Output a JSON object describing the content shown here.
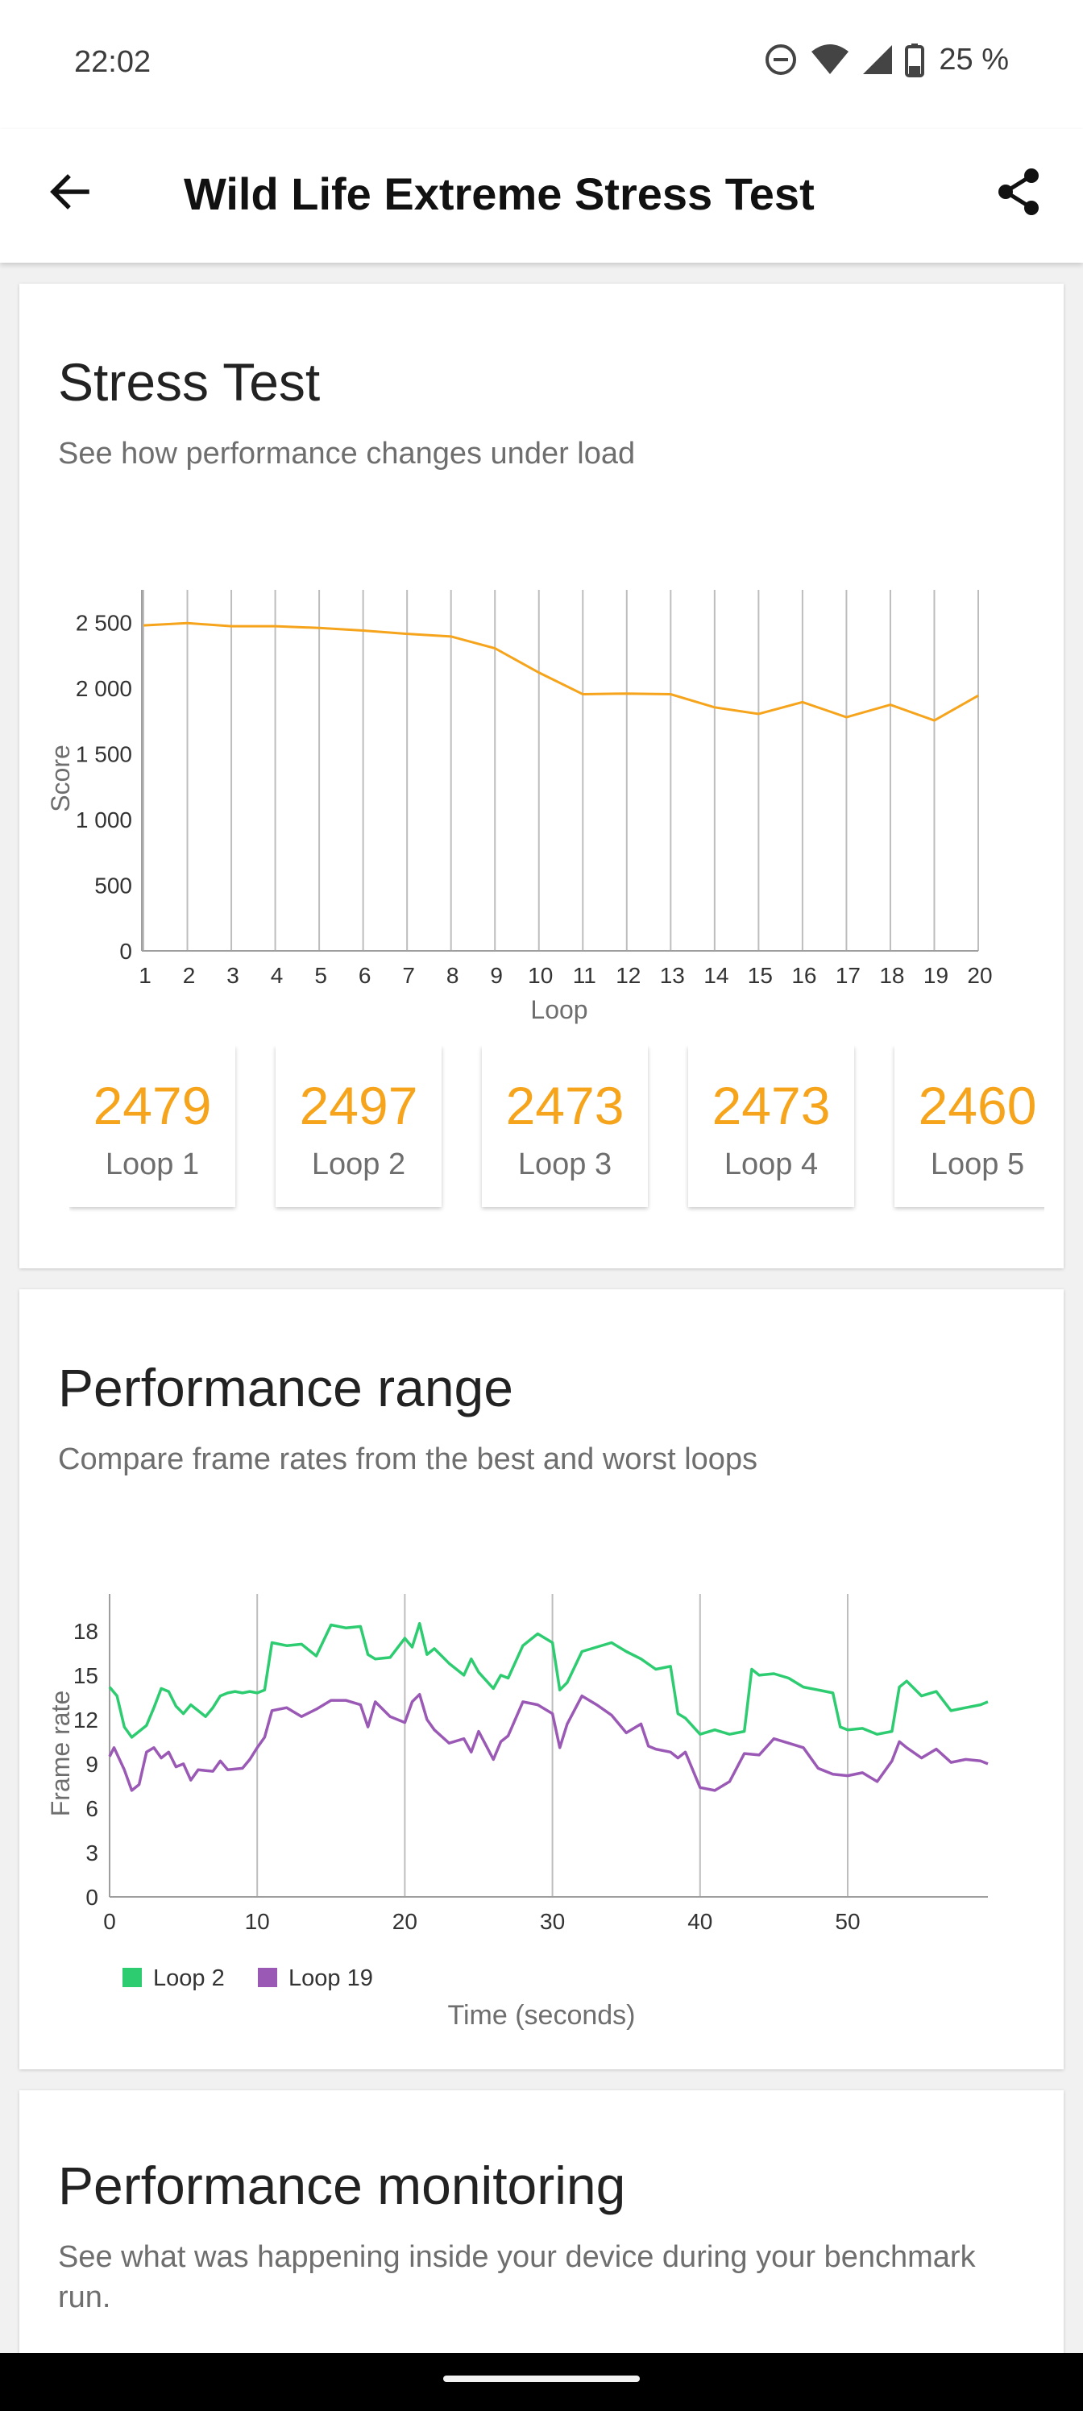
{
  "status": {
    "time": "22:02",
    "battery": "25 %"
  },
  "app_bar": {
    "title": "Wild Life Extreme Stress Test",
    "back_icon": "arrow-left-icon",
    "share_icon": "share-icon"
  },
  "stress": {
    "title": "Stress Test",
    "subtitle": "See how performance changes under load",
    "tiles": [
      {
        "value": "2479",
        "label": "Loop 1"
      },
      {
        "value": "2497",
        "label": "Loop 2"
      },
      {
        "value": "2473",
        "label": "Loop 3"
      },
      {
        "value": "2473",
        "label": "Loop 4"
      },
      {
        "value": "2460",
        "label": "Loop 5"
      }
    ]
  },
  "range": {
    "title": "Performance range",
    "subtitle": "Compare frame rates from the best and worst loops"
  },
  "monitor": {
    "title": "Performance monitoring",
    "subtitle": "See what was happening inside your device during your benchmark run."
  },
  "colors": {
    "accent": "#f5a41c",
    "loop_best": "#2ecc71",
    "loop_worst": "#9b59b6"
  },
  "chart_data": [
    {
      "type": "line",
      "xlabel": "Loop",
      "ylabel": "Score",
      "x": [
        1,
        2,
        3,
        4,
        5,
        6,
        7,
        8,
        9,
        10,
        11,
        12,
        13,
        14,
        15,
        16,
        17,
        18,
        19,
        20
      ],
      "y_ticks": [
        0,
        500,
        1000,
        1500,
        2000,
        2500
      ],
      "y_tick_labels": [
        "0",
        "500",
        "1 000",
        "1 500",
        "2 000",
        "2 500"
      ],
      "ylim": [
        0,
        2750
      ],
      "grid": "vertical",
      "series": [
        {
          "color": "#f5a41c",
          "values": [
            2479,
            2497,
            2473,
            2473,
            2460,
            2440,
            2415,
            2395,
            2305,
            2120,
            1955,
            1960,
            1955,
            1855,
            1805,
            1895,
            1780,
            1875,
            1755,
            1945
          ]
        }
      ]
    },
    {
      "type": "line",
      "xlabel": "Time (seconds)",
      "ylabel": "Frame rate",
      "x_ticks": [
        0,
        10,
        20,
        30,
        40,
        50
      ],
      "xlim": [
        0,
        59.5
      ],
      "y_ticks": [
        0,
        3,
        6,
        9,
        12,
        15,
        18
      ],
      "ylim": [
        0,
        20.5
      ],
      "grid": "vertical",
      "legend": "bottom-left",
      "series": [
        {
          "name": "Loop 2",
          "color": "#2ecc71",
          "points": [
            [
              0,
              14.2
            ],
            [
              0.5,
              13.6
            ],
            [
              1,
              11.5
            ],
            [
              1.5,
              10.8
            ],
            [
              2,
              11.2
            ],
            [
              2.5,
              11.6
            ],
            [
              3,
              12.8
            ],
            [
              3.5,
              14.1
            ],
            [
              4,
              13.9
            ],
            [
              4.5,
              12.9
            ],
            [
              5,
              12.4
            ],
            [
              5.5,
              13.0
            ],
            [
              6,
              12.6
            ],
            [
              6.5,
              12.2
            ],
            [
              7,
              12.8
            ],
            [
              7.5,
              13.6
            ],
            [
              8,
              13.8
            ],
            [
              8.5,
              13.9
            ],
            [
              9,
              13.8
            ],
            [
              9.5,
              13.9
            ],
            [
              10,
              13.8
            ],
            [
              10.5,
              14.0
            ],
            [
              11,
              17.2
            ],
            [
              12,
              17.0
            ],
            [
              13,
              17.1
            ],
            [
              14,
              16.3
            ],
            [
              15,
              18.4
            ],
            [
              16,
              18.2
            ],
            [
              17,
              18.3
            ],
            [
              17.5,
              16.4
            ],
            [
              18,
              16.1
            ],
            [
              19,
              16.2
            ],
            [
              20,
              17.5
            ],
            [
              20.5,
              16.9
            ],
            [
              21,
              18.5
            ],
            [
              21.5,
              16.4
            ],
            [
              22,
              16.8
            ],
            [
              23,
              15.8
            ],
            [
              24,
              15.0
            ],
            [
              24.5,
              16.1
            ],
            [
              25,
              15.2
            ],
            [
              26,
              14.1
            ],
            [
              26.5,
              15.0
            ],
            [
              27,
              14.8
            ],
            [
              28,
              17.0
            ],
            [
              29,
              17.8
            ],
            [
              30,
              17.2
            ],
            [
              30.5,
              14.0
            ],
            [
              31,
              14.5
            ],
            [
              32,
              16.6
            ],
            [
              33,
              16.9
            ],
            [
              34,
              17.2
            ],
            [
              35,
              16.6
            ],
            [
              36,
              16.1
            ],
            [
              37,
              15.4
            ],
            [
              38,
              15.6
            ],
            [
              38.5,
              12.4
            ],
            [
              39,
              12.1
            ],
            [
              40,
              11.0
            ],
            [
              41,
              11.3
            ],
            [
              42,
              11.0
            ],
            [
              43,
              11.2
            ],
            [
              43.5,
              15.4
            ],
            [
              44,
              15.0
            ],
            [
              45,
              15.1
            ],
            [
              46,
              14.8
            ],
            [
              47,
              14.2
            ],
            [
              48,
              14.0
            ],
            [
              49,
              13.8
            ],
            [
              49.5,
              11.5
            ],
            [
              50,
              11.3
            ],
            [
              51,
              11.4
            ],
            [
              52,
              11.0
            ],
            [
              53,
              11.2
            ],
            [
              53.5,
              14.2
            ],
            [
              54,
              14.6
            ],
            [
              55,
              13.6
            ],
            [
              56,
              13.9
            ],
            [
              57,
              12.6
            ],
            [
              58,
              12.8
            ],
            [
              59,
              13.0
            ],
            [
              59.5,
              13.2
            ]
          ]
        },
        {
          "name": "Loop 19",
          "color": "#9b59b6",
          "points": [
            [
              0,
              9.5
            ],
            [
              0.3,
              10.1
            ],
            [
              1,
              8.6
            ],
            [
              1.5,
              7.2
            ],
            [
              2,
              7.6
            ],
            [
              2.5,
              9.8
            ],
            [
              3,
              10.1
            ],
            [
              3.5,
              9.4
            ],
            [
              4,
              9.8
            ],
            [
              4.5,
              8.8
            ],
            [
              5,
              9.0
            ],
            [
              5.5,
              7.9
            ],
            [
              6,
              8.6
            ],
            [
              7,
              8.5
            ],
            [
              7.5,
              9.2
            ],
            [
              8,
              8.6
            ],
            [
              9,
              8.7
            ],
            [
              9.5,
              9.3
            ],
            [
              10,
              10.1
            ],
            [
              10.5,
              10.8
            ],
            [
              11,
              12.6
            ],
            [
              12,
              12.8
            ],
            [
              13,
              12.2
            ],
            [
              14,
              12.7
            ],
            [
              15,
              13.3
            ],
            [
              16,
              13.3
            ],
            [
              17,
              13.0
            ],
            [
              17.5,
              11.5
            ],
            [
              18,
              13.2
            ],
            [
              19,
              12.2
            ],
            [
              20,
              11.8
            ],
            [
              20.5,
              13.2
            ],
            [
              21,
              13.7
            ],
            [
              21.5,
              12.0
            ],
            [
              22,
              11.3
            ],
            [
              23,
              10.4
            ],
            [
              24,
              10.7
            ],
            [
              24.5,
              9.8
            ],
            [
              25,
              11.2
            ],
            [
              26,
              9.3
            ],
            [
              26.5,
              10.5
            ],
            [
              27,
              10.9
            ],
            [
              28,
              13.2
            ],
            [
              29,
              13.0
            ],
            [
              30,
              12.4
            ],
            [
              30.5,
              10.1
            ],
            [
              31,
              11.7
            ],
            [
              32,
              13.6
            ],
            [
              33,
              13.0
            ],
            [
              34,
              12.3
            ],
            [
              35,
              11.1
            ],
            [
              36,
              11.7
            ],
            [
              36.5,
              10.2
            ],
            [
              37,
              10.0
            ],
            [
              38,
              9.8
            ],
            [
              38.5,
              9.4
            ],
            [
              39,
              9.8
            ],
            [
              40,
              7.4
            ],
            [
              41,
              7.2
            ],
            [
              42,
              7.8
            ],
            [
              43,
              9.7
            ],
            [
              44,
              9.6
            ],
            [
              45,
              10.7
            ],
            [
              46,
              10.4
            ],
            [
              47,
              10.1
            ],
            [
              48,
              8.7
            ],
            [
              49,
              8.3
            ],
            [
              50,
              8.2
            ],
            [
              51,
              8.4
            ],
            [
              52,
              7.8
            ],
            [
              53,
              9.2
            ],
            [
              53.5,
              10.5
            ],
            [
              54,
              10.1
            ],
            [
              55,
              9.4
            ],
            [
              56,
              10.0
            ],
            [
              57,
              9.1
            ],
            [
              58,
              9.3
            ],
            [
              59,
              9.2
            ],
            [
              59.5,
              9.0
            ]
          ]
        }
      ]
    }
  ]
}
